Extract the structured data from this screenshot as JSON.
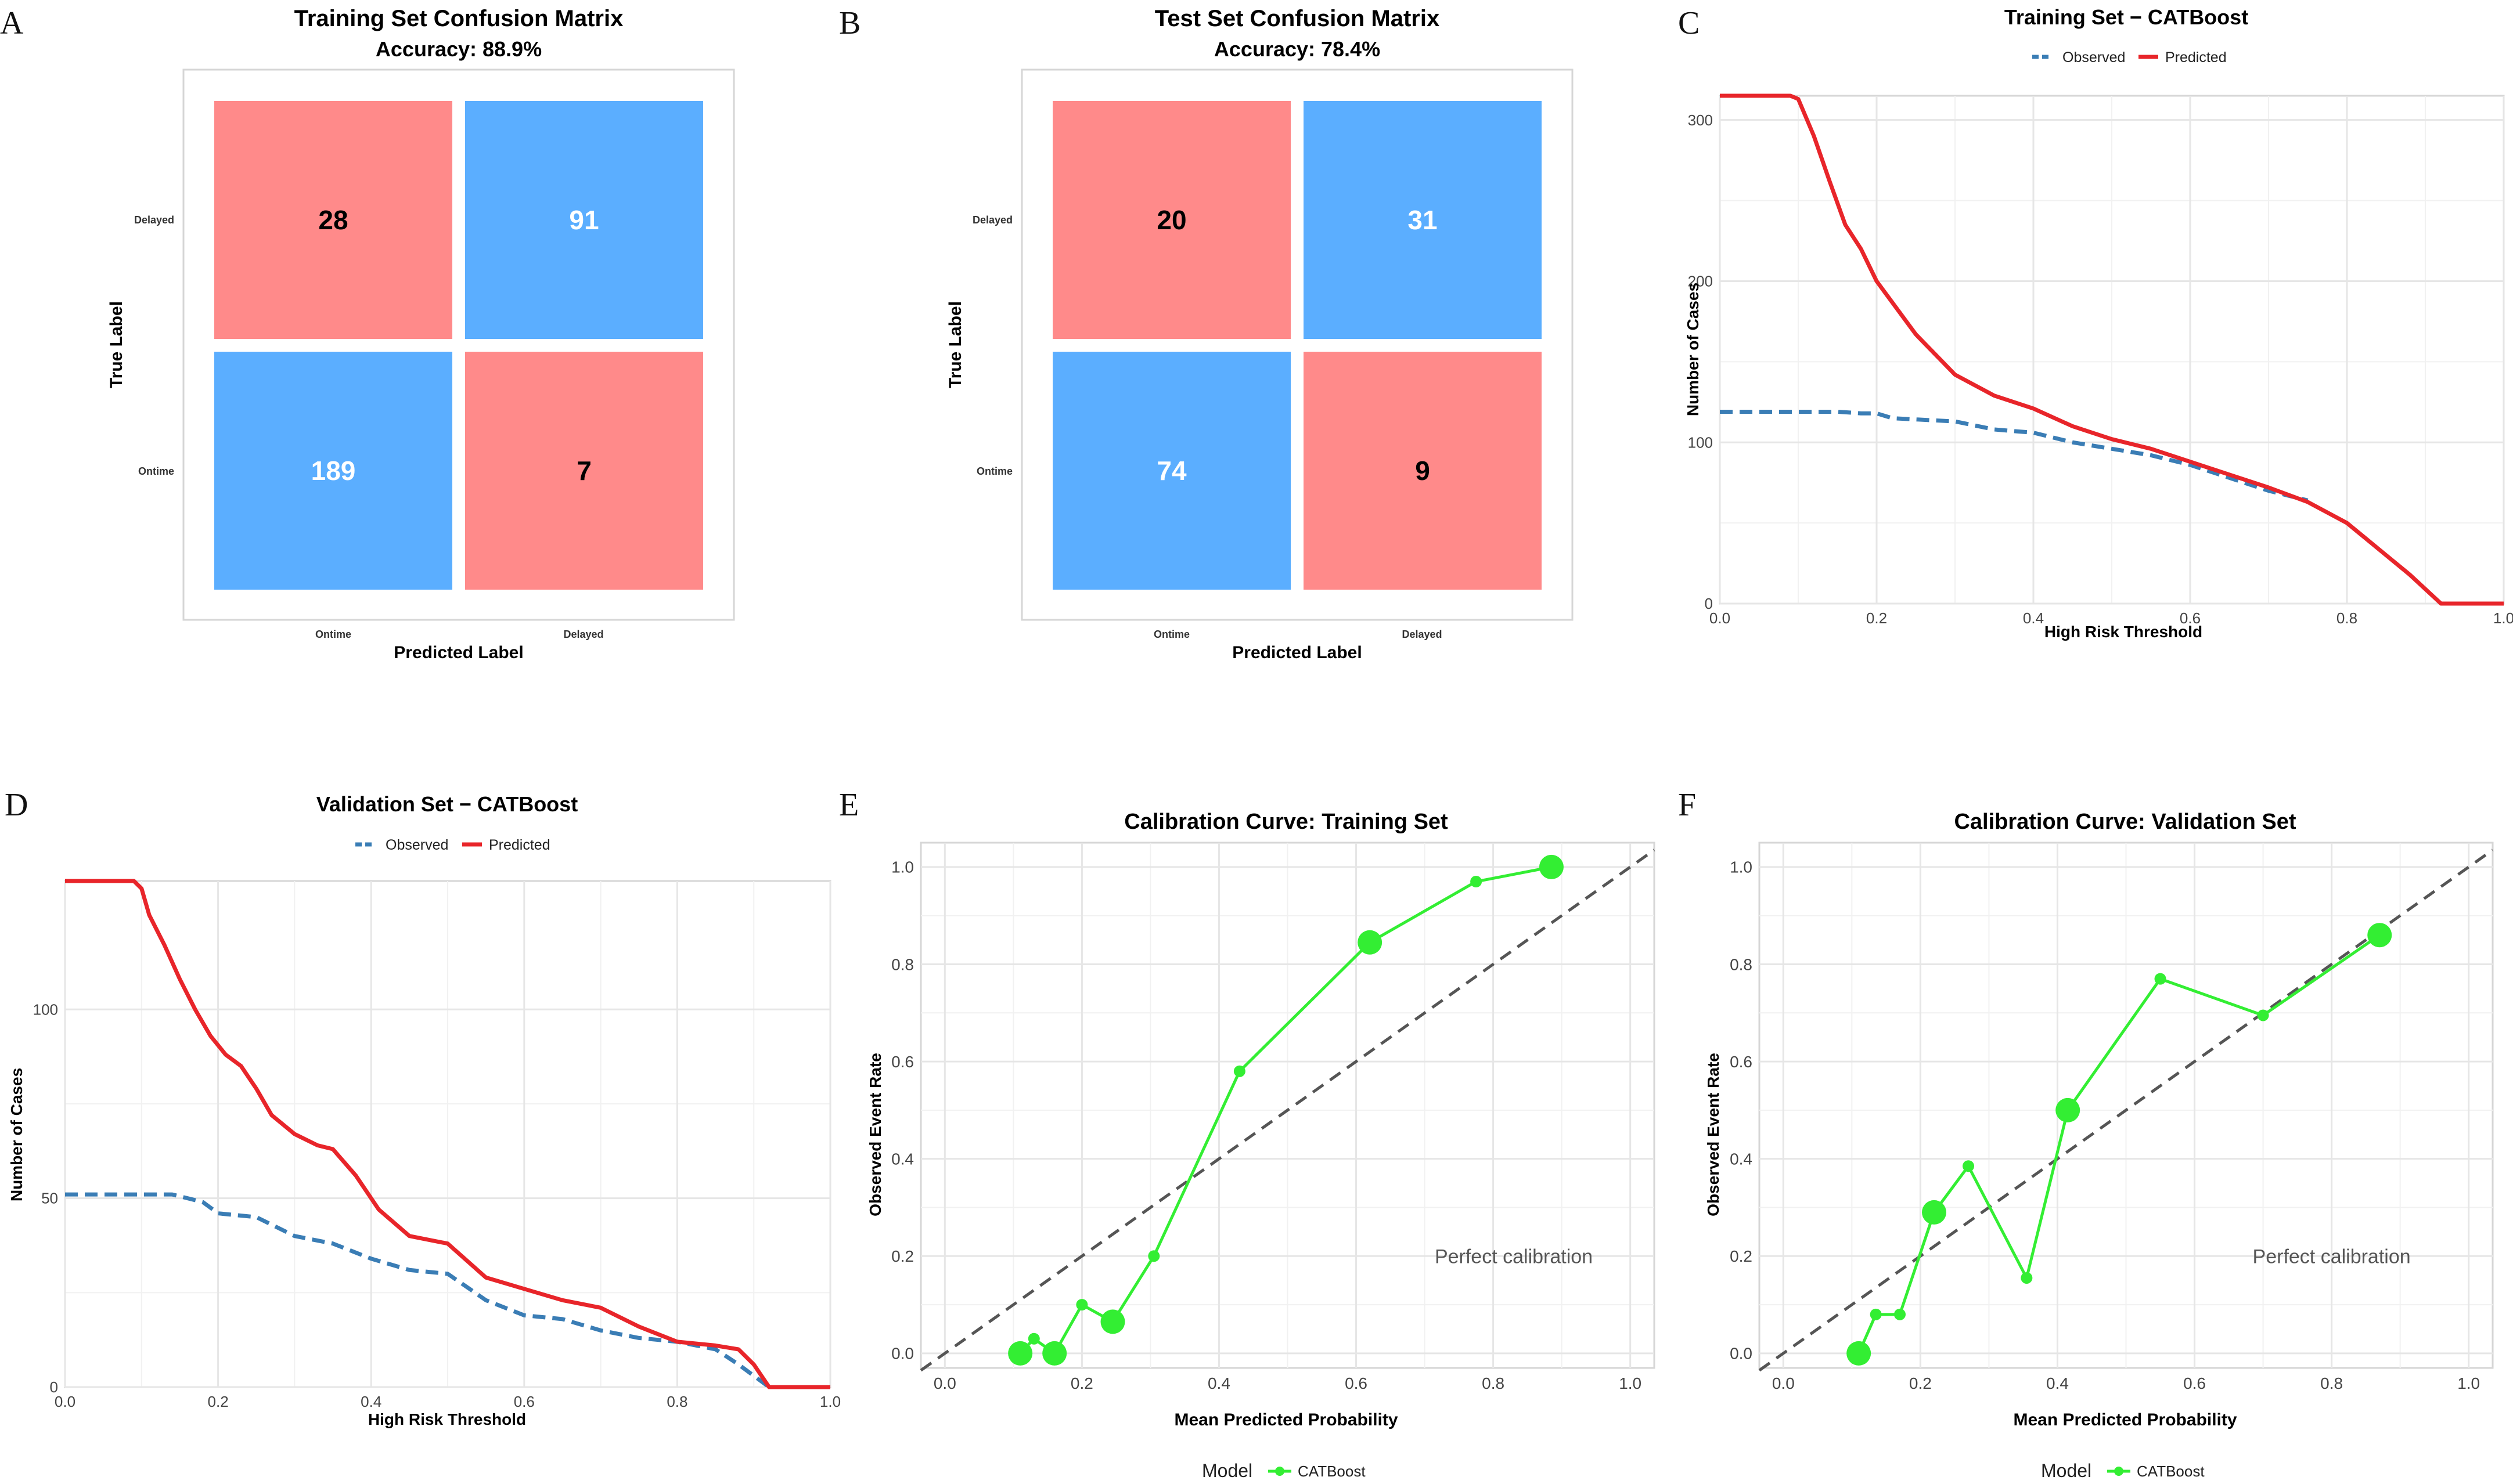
{
  "colors": {
    "diag_cell": "#FF8A8A",
    "off_cell": "#5BAEFF",
    "observed": "#3A7DB5",
    "predicted": "#E8252A",
    "calibration": "#33EE33",
    "diagonal": "#555555",
    "grid": "#E6E6E6",
    "frame": "#D6D6D6"
  },
  "chart_data": [
    {
      "id": "A",
      "panel_label": "A",
      "type": "heatmap",
      "title": "Training Set Confusion Matrix",
      "subtitle": "Accuracy: 88.9%",
      "xlabel": "Predicted Label",
      "ylabel": "True Label",
      "x_categories": [
        "Ontime",
        "Delayed"
      ],
      "y_categories": [
        "Delayed",
        "Ontime"
      ],
      "values": [
        [
          28,
          91
        ],
        [
          189,
          7
        ]
      ]
    },
    {
      "id": "B",
      "panel_label": "B",
      "type": "heatmap",
      "title": "Test Set Confusion Matrix",
      "subtitle": "Accuracy: 78.4%",
      "xlabel": "Predicted Label",
      "ylabel": "True Label",
      "x_categories": [
        "Ontime",
        "Delayed"
      ],
      "y_categories": [
        "Delayed",
        "Ontime"
      ],
      "values": [
        [
          20,
          31
        ],
        [
          74,
          9
        ]
      ]
    },
    {
      "id": "C",
      "panel_label": "C",
      "type": "line",
      "title": "Training Set − CATBoost",
      "xlabel": "High Risk Threshold",
      "ylabel": "Number of Cases",
      "xlim": [
        0,
        1
      ],
      "ylim": [
        0,
        315
      ],
      "xticks": [
        0,
        0.2,
        0.4,
        0.6,
        0.8,
        1
      ],
      "xtick_labels": [
        "0.0",
        "0.2",
        "0.4",
        "0.6",
        "0.8",
        "1.0"
      ],
      "yticks": [
        0,
        100,
        200,
        300
      ],
      "ytick_labels": [
        "0",
        "100",
        "200",
        "300"
      ],
      "legend": [
        "Observed",
        "Predicted"
      ],
      "series": [
        {
          "name": "Observed",
          "x": [
            0,
            0.15,
            0.18,
            0.2,
            0.22,
            0.3,
            0.35,
            0.4,
            0.45,
            0.5,
            0.55,
            0.6,
            0.65,
            0.7,
            0.75
          ],
          "y": [
            119,
            119,
            118,
            118,
            115,
            113,
            108,
            106,
            100,
            96,
            92,
            86,
            78,
            70,
            64
          ]
        },
        {
          "name": "Predicted",
          "x": [
            0,
            0.09,
            0.1,
            0.12,
            0.14,
            0.16,
            0.18,
            0.2,
            0.25,
            0.3,
            0.35,
            0.4,
            0.45,
            0.5,
            0.55,
            0.6,
            0.65,
            0.7,
            0.75,
            0.8,
            0.85,
            0.88,
            0.9,
            0.92,
            0.95,
            1.0
          ],
          "y": [
            315,
            315,
            313,
            290,
            262,
            235,
            220,
            200,
            167,
            142,
            129,
            121,
            110,
            102,
            96,
            88,
            80,
            72,
            63,
            50,
            30,
            18,
            9,
            0,
            0,
            0
          ]
        }
      ]
    },
    {
      "id": "D",
      "panel_label": "D",
      "type": "line",
      "title": "Validation Set − CATBoost",
      "xlabel": "High Risk Threshold",
      "ylabel": "Number of Cases",
      "xlim": [
        0,
        1
      ],
      "ylim": [
        0,
        134
      ],
      "xticks": [
        0,
        0.2,
        0.4,
        0.6,
        0.8,
        1
      ],
      "xtick_labels": [
        "0.0",
        "0.2",
        "0.4",
        "0.6",
        "0.8",
        "1.0"
      ],
      "yticks": [
        0,
        50,
        100
      ],
      "ytick_labels": [
        "0",
        "50",
        "100"
      ],
      "legend": [
        "Observed",
        "Predicted"
      ],
      "series": [
        {
          "name": "Observed",
          "x": [
            0,
            0.14,
            0.18,
            0.2,
            0.25,
            0.3,
            0.35,
            0.4,
            0.45,
            0.5,
            0.55,
            0.6,
            0.65,
            0.7,
            0.75,
            0.8,
            0.85,
            0.88,
            0.9,
            0.92,
            1.0
          ],
          "y": [
            51,
            51,
            49,
            46,
            45,
            40,
            38,
            34,
            31,
            30,
            23,
            19,
            18,
            15,
            13,
            12,
            10,
            6,
            3,
            0,
            0
          ]
        },
        {
          "name": "Predicted",
          "x": [
            0,
            0.09,
            0.1,
            0.11,
            0.13,
            0.15,
            0.17,
            0.19,
            0.21,
            0.23,
            0.25,
            0.27,
            0.3,
            0.33,
            0.35,
            0.38,
            0.41,
            0.45,
            0.5,
            0.55,
            0.6,
            0.65,
            0.7,
            0.75,
            0.8,
            0.85,
            0.88,
            0.9,
            0.92,
            0.95,
            1.0
          ],
          "y": [
            134,
            134,
            132,
            125,
            117,
            108,
            100,
            93,
            88,
            85,
            79,
            72,
            67,
            64,
            63,
            56,
            47,
            40,
            38,
            29,
            26,
            23,
            21,
            16,
            12,
            11,
            10,
            6,
            0,
            0,
            0
          ]
        }
      ]
    },
    {
      "id": "E",
      "panel_label": "E",
      "type": "scatter",
      "title": "Calibration Curve: Training Set",
      "xlabel": "Mean Predicted Probability",
      "ylabel": "Observed Event Rate",
      "xlim": [
        -0.035,
        1.035
      ],
      "ylim": [
        -0.03,
        1.05
      ],
      "xticks": [
        0,
        0.2,
        0.4,
        0.6,
        0.8,
        1
      ],
      "xtick_labels": [
        "0.0",
        "0.2",
        "0.4",
        "0.6",
        "0.8",
        "1.0"
      ],
      "yticks": [
        0,
        0.2,
        0.4,
        0.6,
        0.8,
        1
      ],
      "ytick_labels": [
        "0.0",
        "0.2",
        "0.4",
        "0.6",
        "0.8",
        "1.0"
      ],
      "annotation": "Perfect calibration",
      "annotation_pos": [
        0.83,
        0.2
      ],
      "legend_title": "Model",
      "legend": [
        "CATBoost"
      ],
      "points": [
        {
          "x": 0.11,
          "y": 0.0,
          "size": "large"
        },
        {
          "x": 0.13,
          "y": 0.03,
          "size": "small"
        },
        {
          "x": 0.16,
          "y": 0.0,
          "size": "large"
        },
        {
          "x": 0.2,
          "y": 0.1,
          "size": "small"
        },
        {
          "x": 0.245,
          "y": 0.065,
          "size": "large"
        },
        {
          "x": 0.305,
          "y": 0.2,
          "size": "small"
        },
        {
          "x": 0.43,
          "y": 0.58,
          "size": "small"
        },
        {
          "x": 0.62,
          "y": 0.845,
          "size": "large"
        },
        {
          "x": 0.775,
          "y": 0.97,
          "size": "small"
        },
        {
          "x": 0.885,
          "y": 1.0,
          "size": "large"
        }
      ]
    },
    {
      "id": "F",
      "panel_label": "F",
      "type": "scatter",
      "title": "Calibration Curve: Validation Set",
      "xlabel": "Mean Predicted Probability",
      "ylabel": "Observed Event Rate",
      "xlim": [
        -0.035,
        1.035
      ],
      "ylim": [
        -0.03,
        1.05
      ],
      "xticks": [
        0,
        0.2,
        0.4,
        0.6,
        0.8,
        1
      ],
      "xtick_labels": [
        "0.0",
        "0.2",
        "0.4",
        "0.6",
        "0.8",
        "1.0"
      ],
      "yticks": [
        0,
        0.2,
        0.4,
        0.6,
        0.8,
        1
      ],
      "ytick_labels": [
        "0.0",
        "0.2",
        "0.4",
        "0.6",
        "0.8",
        "1.0"
      ],
      "annotation": "Perfect calibration",
      "annotation_pos": [
        0.8,
        0.2
      ],
      "legend_title": "Model",
      "legend": [
        "CATBoost"
      ],
      "points": [
        {
          "x": 0.11,
          "y": 0.0,
          "size": "large"
        },
        {
          "x": 0.135,
          "y": 0.08,
          "size": "small"
        },
        {
          "x": 0.17,
          "y": 0.08,
          "size": "small"
        },
        {
          "x": 0.22,
          "y": 0.29,
          "size": "large"
        },
        {
          "x": 0.27,
          "y": 0.385,
          "size": "small"
        },
        {
          "x": 0.355,
          "y": 0.155,
          "size": "small"
        },
        {
          "x": 0.415,
          "y": 0.5,
          "size": "large"
        },
        {
          "x": 0.55,
          "y": 0.77,
          "size": "small"
        },
        {
          "x": 0.7,
          "y": 0.695,
          "size": "small"
        },
        {
          "x": 0.87,
          "y": 0.86,
          "size": "large"
        }
      ]
    }
  ]
}
